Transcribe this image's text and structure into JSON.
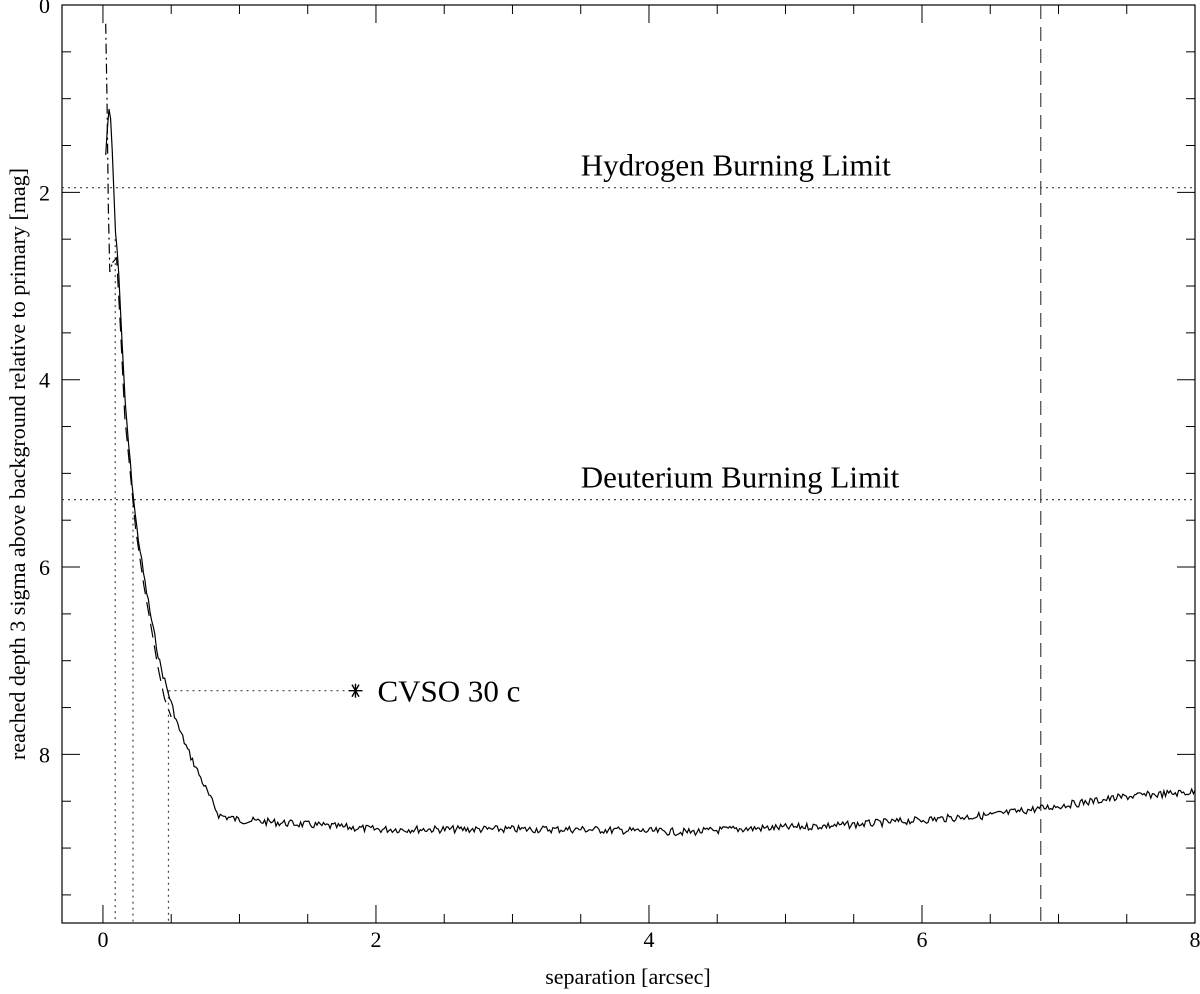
{
  "chart_data": {
    "type": "line",
    "title": "",
    "xlabel": "separation [arcsec]",
    "ylabel": "reached depth 3 sigma above background relative to primary [mag]",
    "xlim": [
      -0.3,
      8.0
    ],
    "ylim": [
      9.8,
      0.0
    ],
    "y_inverted": true,
    "grid": false,
    "x_ticks": [
      "0",
      "2",
      "4",
      "6",
      "8"
    ],
    "x_tick_values": [
      0,
      2,
      4,
      6,
      8
    ],
    "x_minor_step": 0.5,
    "y_ticks": [
      "0",
      "2",
      "4",
      "6",
      "8"
    ],
    "y_tick_values": [
      0,
      2,
      4,
      6,
      8
    ],
    "y_minor_step": 0.5,
    "series": [
      {
        "style": "solid",
        "x": [
          0.02,
          0.04,
          0.05,
          0.07,
          0.09,
          0.11,
          0.13,
          0.16,
          0.2,
          0.24,
          0.3,
          0.36,
          0.42,
          0.48,
          0.55,
          0.62,
          0.7,
          0.78,
          0.85,
          1.0,
          1.2,
          1.5,
          2.0,
          2.5,
          3.0,
          3.5,
          4.0,
          4.3,
          4.6,
          5.0,
          5.5,
          6.0,
          6.5,
          7.0,
          7.5,
          8.0
        ],
        "y": [
          1.6,
          1.15,
          1.05,
          1.6,
          2.4,
          2.7,
          3.3,
          4.2,
          4.9,
          5.5,
          6.1,
          6.6,
          7.05,
          7.35,
          7.7,
          7.95,
          8.2,
          8.45,
          8.65,
          8.7,
          8.72,
          8.75,
          8.8,
          8.8,
          8.8,
          8.8,
          8.82,
          8.83,
          8.8,
          8.78,
          8.75,
          8.7,
          8.65,
          8.55,
          8.45,
          8.4
        ],
        "noise": 0.04
      },
      {
        "style": "dash-dot",
        "x": [
          0.02,
          0.03,
          0.04,
          0.05,
          0.07
        ],
        "y": [
          0.2,
          1.0,
          2.2,
          2.85,
          2.75
        ]
      },
      {
        "style": "dashed",
        "x": [
          0.07,
          0.1,
          0.13,
          0.16,
          0.2,
          0.24,
          0.3,
          0.36,
          0.4,
          0.45,
          0.5
        ],
        "y": [
          2.75,
          2.7,
          3.5,
          4.4,
          5.0,
          5.6,
          6.2,
          6.7,
          7.05,
          7.4,
          7.6
        ]
      }
    ],
    "reference_lines": [
      {
        "orientation": "horizontal",
        "value": 1.95,
        "style": "dotted",
        "label": "Hydrogen Burning Limit",
        "label_x": 3.5
      },
      {
        "orientation": "horizontal",
        "value": 5.28,
        "style": "dotted",
        "label": "Deuterium Burning Limit",
        "label_x": 3.5
      },
      {
        "orientation": "vertical",
        "value": 6.87,
        "style": "dashed",
        "label": ""
      }
    ],
    "drop_lines": [
      {
        "x": 0.09,
        "from_y": 2.5
      },
      {
        "x": 0.22,
        "from_y": 5.28
      },
      {
        "x": 0.48,
        "from_y": 7.32
      }
    ],
    "points": [
      {
        "x": 1.85,
        "y": 7.32,
        "marker": "asterisk",
        "label": "CVSO 30 c",
        "connector_from_x": 0.48
      }
    ]
  }
}
